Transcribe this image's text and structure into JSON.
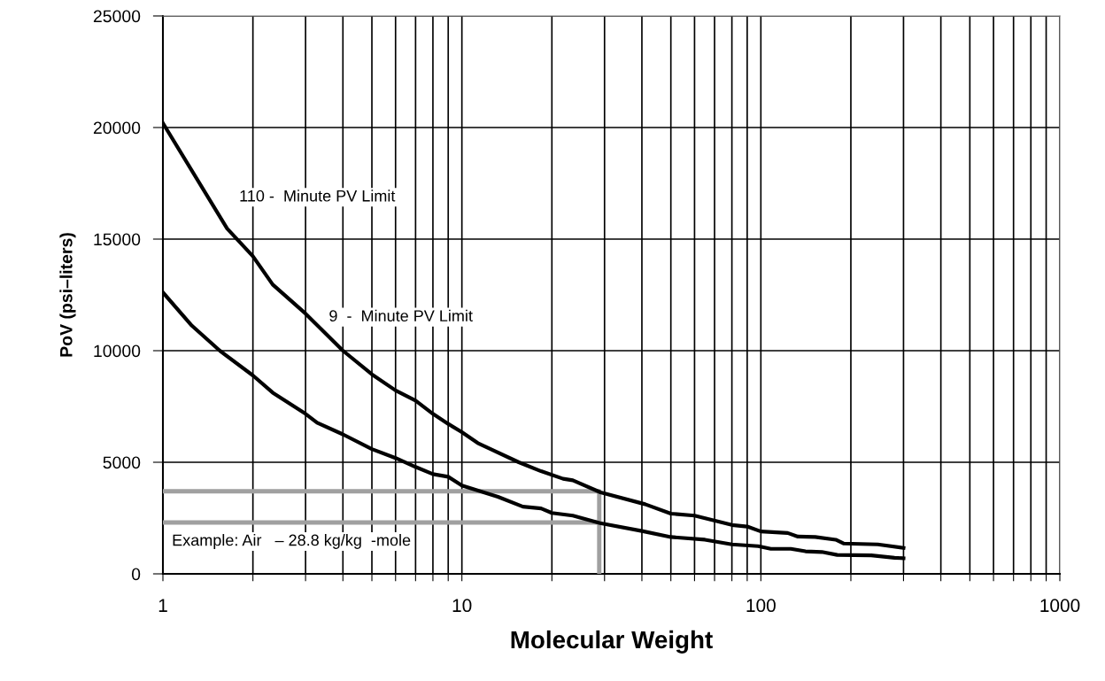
{
  "chart_data": {
    "type": "line",
    "xlabel": "Molecular Weight",
    "ylabel": "PoV (psi–liters)",
    "log": "x",
    "xlim": [
      1,
      1000
    ],
    "ylim": [
      0,
      25000
    ],
    "xticks": [
      1,
      {
        "value": 2,
        "label": null
      },
      {
        "value": 3,
        "label": null
      },
      {
        "value": 4,
        "label": null
      },
      {
        "value": 5,
        "label": null
      },
      {
        "value": 6,
        "label": null
      },
      {
        "value": 7,
        "label": null
      },
      {
        "value": 8,
        "label": null
      },
      {
        "value": 9,
        "label": null
      },
      10,
      {
        "value": 20,
        "label": null
      },
      {
        "value": 30,
        "label": null
      },
      {
        "value": 40,
        "label": null
      },
      {
        "value": 50,
        "label": null
      },
      {
        "value": 60,
        "label": null
      },
      {
        "value": 70,
        "label": null
      },
      {
        "value": 80,
        "label": null
      },
      {
        "value": 90,
        "label": null
      },
      100,
      {
        "value": 200,
        "label": null
      },
      {
        "value": 300,
        "label": null
      },
      {
        "value": 400,
        "label": null
      },
      {
        "value": 500,
        "label": null
      },
      {
        "value": 600,
        "label": null
      },
      {
        "value": 700,
        "label": null
      },
      {
        "value": 800,
        "label": null
      },
      {
        "value": 900,
        "label": null
      },
      1000
    ],
    "yticks": [
      0,
      5000,
      10000,
      15000,
      20000,
      25000
    ],
    "grid": true,
    "marker": "none",
    "line_style": "solid",
    "series": [
      {
        "color": "#000000",
        "x": [
          1,
          1.64,
          2,
          2.33,
          3,
          4,
          5,
          6,
          7,
          8,
          9,
          10,
          11.3,
          15.5,
          18.4,
          21.8,
          23.5,
          29.1,
          41,
          50,
          60,
          80,
          90,
          100,
          123,
          133,
          152,
          178,
          189,
          246,
          300
        ],
        "values": [
          20200,
          15470,
          14230,
          12960,
          11660,
          10000,
          8940,
          8220,
          7760,
          7170,
          6720,
          6350,
          5860,
          5000,
          4600,
          4260,
          4190,
          3650,
          3120,
          2700,
          2610,
          2190,
          2120,
          1900,
          1830,
          1670,
          1650,
          1530,
          1360,
          1320,
          1160
        ]
      },
      {
        "color": "#000000",
        "x": [
          1,
          1.25,
          1.55,
          2,
          2.33,
          3,
          3.28,
          4,
          5,
          6,
          7,
          8,
          9,
          10,
          13.2,
          16,
          18.4,
          20,
          23.5,
          29,
          40,
          50,
          65,
          80,
          98,
          108,
          126,
          141,
          160,
          180,
          234,
          280,
          300
        ],
        "values": [
          12610,
          11120,
          10000,
          8890,
          8120,
          7170,
          6770,
          6250,
          5590,
          5190,
          4790,
          4470,
          4350,
          3960,
          3450,
          3010,
          2930,
          2730,
          2610,
          2270,
          1920,
          1650,
          1530,
          1320,
          1240,
          1120,
          1120,
          1010,
          980,
          850,
          830,
          720,
          700
        ]
      },
      {
        "color": "#a0a0a0",
        "x": [
          1,
          28.8,
          28.8
        ],
        "values": [
          3700,
          3700,
          0
        ]
      },
      {
        "color": "#a0a0a0",
        "x": [
          1,
          28.8
        ],
        "values": [
          2300,
          2300
        ]
      }
    ],
    "annotations": [
      "110 -  Minute PV Limit",
      "9  -  Minute PV Limit",
      "Example: Air   – 28.8 kg/kg  -mole"
    ]
  }
}
